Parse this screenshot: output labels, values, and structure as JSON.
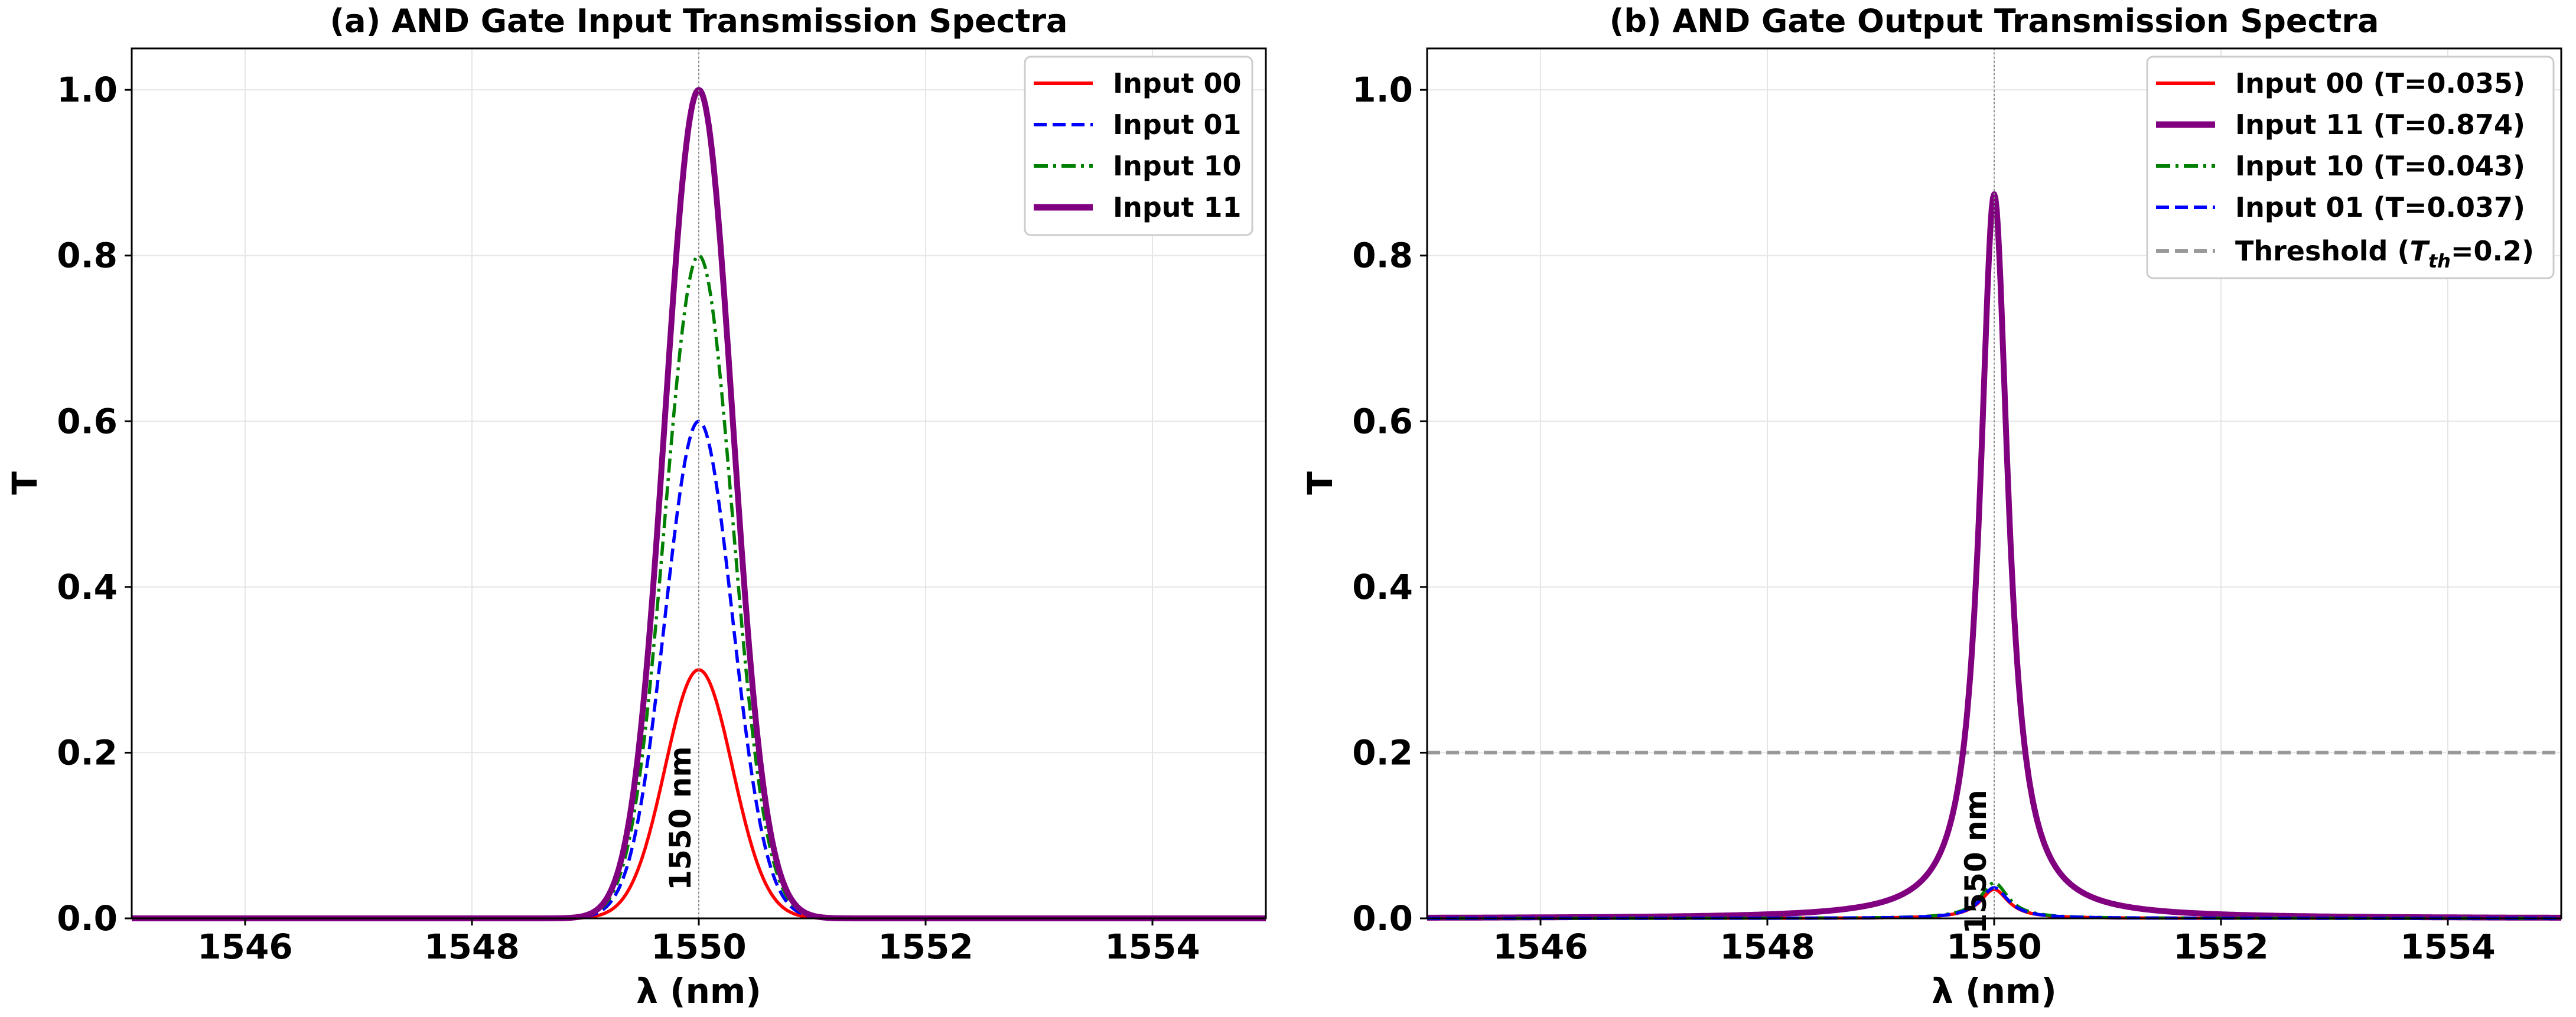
{
  "chart_data": [
    {
      "type": "line",
      "title": "(a) AND Gate Input Transmission Spectra",
      "xlabel": "λ (nm)",
      "ylabel": "T",
      "xlim": [
        1545,
        1555
      ],
      "ylim": [
        0,
        1.05
      ],
      "xticks": [
        1546,
        1548,
        1550,
        1552,
        1554
      ],
      "yticks": [
        0.0,
        0.2,
        0.4,
        0.6,
        0.8,
        1.0
      ],
      "grid": true,
      "legend_position": "top-right",
      "annotation": "1550 nm",
      "center_wavelength": 1550,
      "peak_shape": "gaussian",
      "peak_fwhm_nm": 0.7,
      "series": [
        {
          "name": "Input 00",
          "peak": 0.3,
          "color": "#ff0000",
          "dash": "solid"
        },
        {
          "name": "Input 01",
          "peak": 0.6,
          "color": "#0000ff",
          "dash": "dashed"
        },
        {
          "name": "Input 10",
          "peak": 0.8,
          "color": "#008000",
          "dash": "dashdot"
        },
        {
          "name": "Input 11",
          "peak": 1.0,
          "color": "#800080",
          "dash": "solid-thick"
        }
      ]
    },
    {
      "type": "line",
      "title": "(b) AND Gate Output Transmission Spectra",
      "xlabel": "λ (nm)",
      "ylabel": "T",
      "xlim": [
        1545,
        1555
      ],
      "ylim": [
        0,
        1.05
      ],
      "xticks": [
        1546,
        1548,
        1550,
        1552,
        1554
      ],
      "yticks": [
        0.0,
        0.2,
        0.4,
        0.6,
        0.8,
        1.0
      ],
      "grid": true,
      "legend_position": "top-right",
      "annotation": "1550 nm",
      "center_wavelength": 1550,
      "peak_shape": "lorentzian",
      "peak_fwhm_nm": 0.3,
      "threshold": 0.2,
      "threshold_label_prefix": "Threshold (",
      "threshold_symbol": "T",
      "threshold_subscript": "th",
      "threshold_label_suffix": "=0.2)",
      "series": [
        {
          "name": "Input 00 (T=0.035)",
          "peak": 0.035,
          "color": "#ff0000",
          "dash": "solid"
        },
        {
          "name": "Input 11 (T=0.874)",
          "peak": 0.874,
          "color": "#800080",
          "dash": "solid-thick"
        },
        {
          "name": "Input 10 (T=0.043)",
          "peak": 0.043,
          "color": "#008000",
          "dash": "dashdot"
        },
        {
          "name": "Input 01 (T=0.037)",
          "peak": 0.037,
          "color": "#0000ff",
          "dash": "dashed"
        }
      ],
      "threshold_color": "#999999"
    }
  ]
}
